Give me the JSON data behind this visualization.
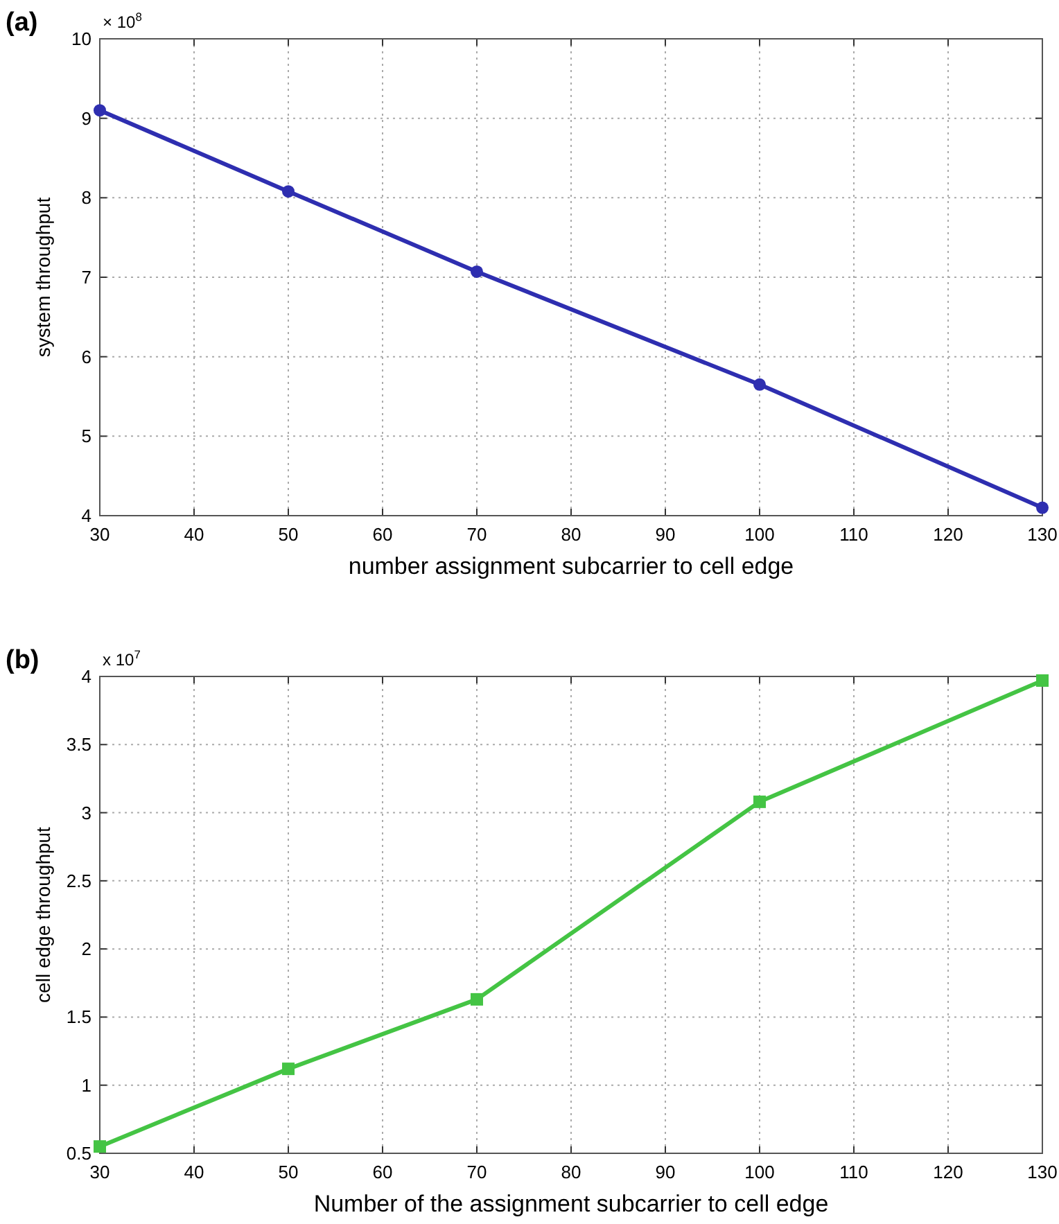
{
  "chart_data": [
    {
      "type": "line",
      "title": "(a)",
      "xlabel": "number assignment subcarrier to cell edge",
      "ylabel": "system throughput",
      "annotations": [
        "× 10$^{8}$"
      ],
      "x": [
        30,
        50,
        70,
        100,
        130
      ],
      "series": [
        {
          "color": "#2e2eb0",
          "values": [
            9.1,
            8.08,
            7.07,
            5.65,
            4.1
          ]
        }
      ],
      "xlim": [
        30,
        130
      ],
      "xticks": [
        30,
        40,
        50,
        60,
        70,
        80,
        90,
        100,
        110,
        120,
        130
      ],
      "ylim": [
        4,
        10
      ],
      "yticks": [
        4,
        5,
        6,
        7,
        8,
        9,
        10
      ],
      "grid": true,
      "marker": "circle",
      "line_style": "solid"
    },
    {
      "type": "line",
      "title": "(b)",
      "xlabel": "Number of the assignment subcarrier to cell edge",
      "ylabel": "cell edge throughput",
      "annotations": [
        "x 10$^{7}$"
      ],
      "x": [
        30,
        50,
        70,
        100,
        130
      ],
      "series": [
        {
          "color": "#44c444",
          "values": [
            0.55,
            1.12,
            1.63,
            3.08,
            3.97
          ]
        }
      ],
      "xlim": [
        30,
        130
      ],
      "xticks": [
        30,
        40,
        50,
        60,
        70,
        80,
        90,
        100,
        110,
        120,
        130
      ],
      "ylim": [
        0.5,
        4
      ],
      "yticks": [
        0.5,
        1,
        1.5,
        2,
        2.5,
        3,
        3.5,
        4
      ],
      "grid": true,
      "marker": "square",
      "line_style": "solid"
    }
  ]
}
